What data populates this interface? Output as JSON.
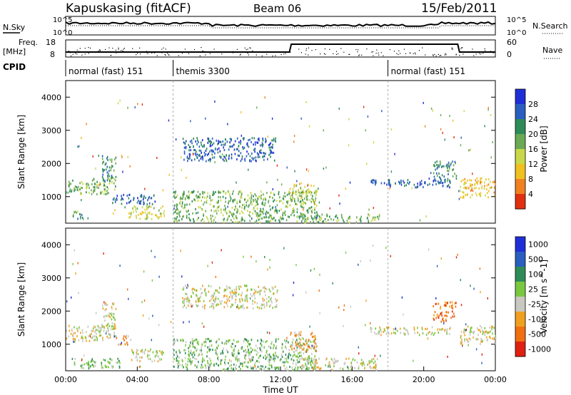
{
  "header": {
    "station": "Kapuskasing (fitACF)",
    "beam": "Beam 06",
    "date": "15/Feb/2011"
  },
  "top_panel_labels": {
    "nsky": "N.Sky",
    "nsearch": "N.Search",
    "freq_l1": "Freq.",
    "freq_l2": "[MHz]",
    "nave": "Nave",
    "cpid": "CPID",
    "noise_ticks": [
      "10^5",
      "10^0"
    ],
    "freq_ticks": [
      "18",
      "8"
    ],
    "nave_ticks": [
      "60",
      "0"
    ]
  },
  "cpid_segments": [
    {
      "label": "normal (fast) 151",
      "start": 0,
      "end": 6
    },
    {
      "label": "themis 3300",
      "start": 6,
      "end": 18
    },
    {
      "label": "normal (fast) 151",
      "start": 18,
      "end": 24
    }
  ],
  "colors": {
    "power": [
      "#1f2fd8",
      "#2a5fbf",
      "#2e8b57",
      "#6aaa55",
      "#c8d84a",
      "#f0c020",
      "#f08020",
      "#e03010"
    ],
    "velocity": [
      "#1f2fd8",
      "#2a5fbf",
      "#2e8b57",
      "#7ac840",
      "#c8c8c0",
      "#f0a020",
      "#f07010",
      "#e02010"
    ]
  },
  "chart_data": [
    {
      "type": "heatmap",
      "name": "power",
      "ylabel": "Slant Range [km]",
      "ylim": [
        200,
        4500
      ],
      "yticks": [
        "1000",
        "2000",
        "3000",
        "4000"
      ],
      "xlim": [
        0,
        24
      ],
      "colorbar": {
        "label": "Power [dB]",
        "ticks": [
          "4",
          "8",
          "12",
          "16",
          "20",
          "24",
          "28"
        ]
      },
      "regions": [
        {
          "t0": 0.0,
          "t1": 2.8,
          "r0": 1100,
          "r1": 1600,
          "level": 3
        },
        {
          "t0": 2.0,
          "t1": 2.8,
          "r0": 1500,
          "r1": 2300,
          "level": 2
        },
        {
          "t0": 2.5,
          "t1": 5.0,
          "r0": 800,
          "r1": 1100,
          "level": 1
        },
        {
          "t0": 3.5,
          "t1": 5.5,
          "r0": 350,
          "r1": 750,
          "level": 4
        },
        {
          "t0": 0.3,
          "t1": 1.0,
          "r0": 350,
          "r1": 600,
          "level": 2
        },
        {
          "t0": 6.5,
          "t1": 11.8,
          "r0": 2100,
          "r1": 2800,
          "level": 1
        },
        {
          "t0": 6.0,
          "t1": 14.0,
          "r0": 250,
          "r1": 1200,
          "level": 3
        },
        {
          "t0": 12.5,
          "t1": 14.0,
          "r0": 800,
          "r1": 1400,
          "level": 4
        },
        {
          "t0": 13.0,
          "t1": 17.5,
          "r0": 250,
          "r1": 500,
          "level": 3
        },
        {
          "t0": 17.0,
          "t1": 21.5,
          "r0": 1300,
          "r1": 1550,
          "level": 1
        },
        {
          "t0": 20.5,
          "t1": 21.8,
          "r0": 1500,
          "r1": 2100,
          "level": 2
        },
        {
          "t0": 22.0,
          "t1": 24.0,
          "r0": 1000,
          "r1": 1600,
          "level": 5
        }
      ]
    },
    {
      "type": "heatmap",
      "name": "velocity",
      "ylabel": "Slant Range [km]",
      "ylim": [
        200,
        4500
      ],
      "yticks": [
        "1000",
        "2000",
        "3000",
        "4000"
      ],
      "xlim": [
        0,
        24
      ],
      "colorbar": {
        "label": "Velocity [m s^-1]",
        "ticks": [
          "1000",
          "500",
          "100",
          "25",
          "-25",
          "-100",
          "-500",
          "-1000"
        ]
      },
      "regions": [
        {
          "t0": 0.0,
          "t1": 2.8,
          "r0": 1100,
          "r1": 1600,
          "level": 4
        },
        {
          "t0": 2.0,
          "t1": 2.8,
          "r0": 1500,
          "r1": 2300,
          "level": 4
        },
        {
          "t0": 2.8,
          "t1": 3.6,
          "r0": 1000,
          "r1": 1300,
          "level": 5
        },
        {
          "t0": 3.5,
          "t1": 5.5,
          "r0": 500,
          "r1": 900,
          "level": 4
        },
        {
          "t0": 0.3,
          "t1": 3.0,
          "r0": 300,
          "r1": 600,
          "level": 3
        },
        {
          "t0": 6.5,
          "t1": 11.8,
          "r0": 2100,
          "r1": 2800,
          "level": 4
        },
        {
          "t0": 6.0,
          "t1": 14.0,
          "r0": 250,
          "r1": 1200,
          "level": 3
        },
        {
          "t0": 12.5,
          "t1": 14.0,
          "r0": 800,
          "r1": 1400,
          "level": 5
        },
        {
          "t0": 13.0,
          "t1": 17.5,
          "r0": 250,
          "r1": 600,
          "level": 4
        },
        {
          "t0": 17.0,
          "t1": 21.5,
          "r0": 1300,
          "r1": 1550,
          "level": 4
        },
        {
          "t0": 20.5,
          "t1": 21.8,
          "r0": 1700,
          "r1": 2300,
          "level": 6
        },
        {
          "t0": 22.0,
          "t1": 24.0,
          "r0": 1000,
          "r1": 1600,
          "level": 4
        }
      ]
    }
  ],
  "xaxis": {
    "label": "Time UT",
    "ticks": [
      "00:00",
      "04:00",
      "08:00",
      "12:00",
      "16:00",
      "20:00",
      "00:00"
    ]
  }
}
